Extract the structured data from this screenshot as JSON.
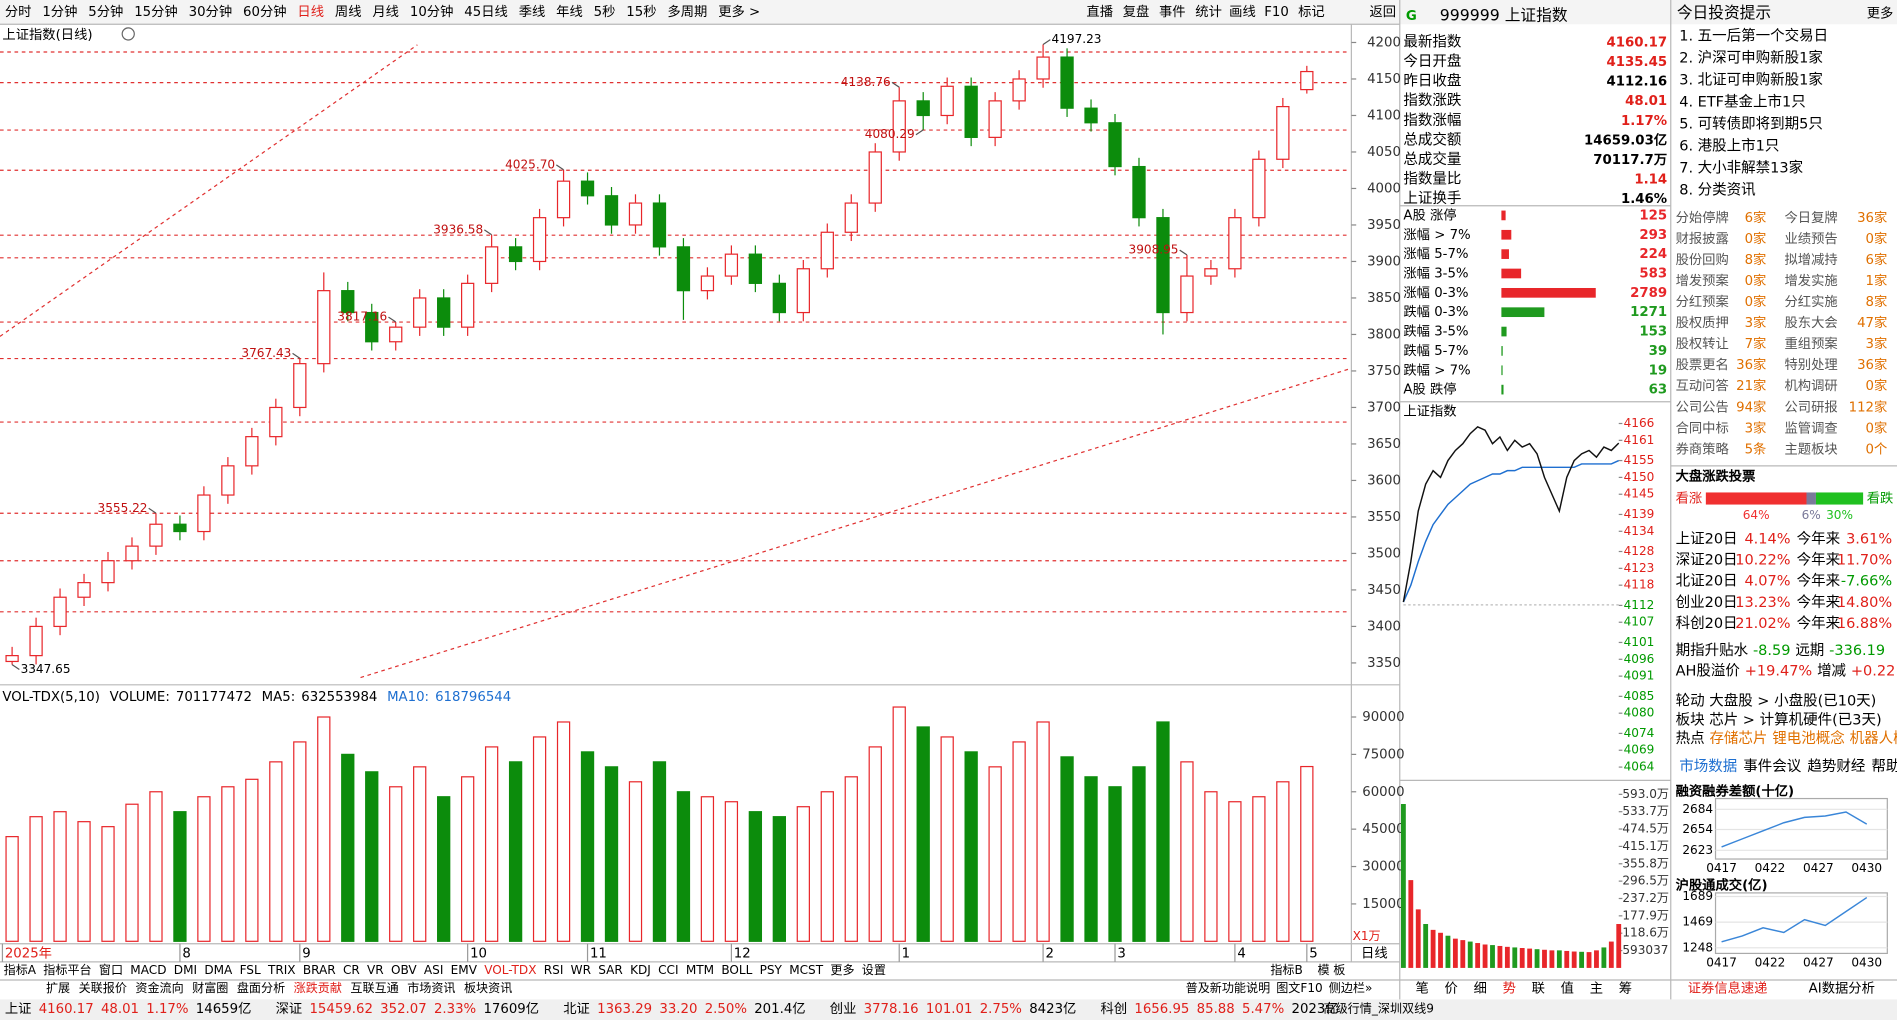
{
  "toolbar": {
    "periods": [
      "分时",
      "1分钟",
      "5分钟",
      "15分钟",
      "30分钟",
      "60分钟",
      "日线",
      "周线",
      "月线",
      "10分钟",
      "45日线",
      "季线",
      "年线",
      "5秒",
      "15秒",
      "多周期",
      "更多 >"
    ],
    "active": 6,
    "buttons": [
      "直播",
      "复盘",
      "事件",
      "统计",
      "画线",
      "F10",
      "标记",
      "返回"
    ]
  },
  "main_chart": {
    "type": "candlestick",
    "title": "上证指数(日线)",
    "open": [
      3352,
      3360,
      3400,
      3440,
      3460,
      3490,
      3510,
      3540,
      3530,
      3580,
      3620,
      3660,
      3700,
      3760,
      3860,
      3830,
      3790,
      3810,
      3850,
      3810,
      3870,
      3920,
      3900,
      3960,
      4010,
      3990,
      3950,
      3980,
      3920,
      3860,
      3880,
      3910,
      3870,
      3830,
      3890,
      3940,
      3980,
      4050,
      4120,
      4100,
      4140,
      4070,
      4120,
      4150,
      4180,
      4110,
      4090,
      4030,
      3960,
      3830,
      3880,
      3890,
      3960,
      4040,
      4135.45
    ],
    "high": [
      3372,
      3412,
      3452,
      3472,
      3502,
      3522,
      3555.22,
      3552,
      3592,
      3632,
      3672,
      3712,
      3767.43,
      3885,
      3872,
      3842,
      3817.16,
      3862,
      3862,
      3882,
      3936.58,
      3932,
      3972,
      4025.7,
      4022,
      4002,
      3992,
      3992,
      3932,
      3892,
      3922,
      3922,
      3882,
      3902,
      3952,
      3992,
      4062,
      4138.76,
      4132,
      4152,
      4152,
      4132,
      4162,
      4197.23,
      4192,
      4122,
      4102,
      4042,
      3972,
      3908.95,
      3902,
      3972,
      4052,
      4124,
      4168
    ],
    "low": [
      3347.65,
      3348,
      3388,
      3428,
      3448,
      3478,
      3498,
      3518,
      3518,
      3568,
      3608,
      3648,
      3688,
      3748,
      3818,
      3778,
      3778,
      3798,
      3798,
      3798,
      3858,
      3888,
      3888,
      3948,
      3978,
      3938,
      3938,
      3908,
      3820,
      3848,
      3868,
      3858,
      3818,
      3818,
      3878,
      3928,
      3968,
      4038,
      4080.29,
      4088,
      4058,
      4058,
      4108,
      4138,
      4098,
      4078,
      4018,
      3948,
      3800,
      3818,
      3868,
      3878,
      3948,
      4028,
      4130
    ],
    "close": [
      3360,
      3400,
      3440,
      3460,
      3490,
      3510,
      3540,
      3530,
      3580,
      3620,
      3660,
      3700,
      3760,
      3860,
      3830,
      3790,
      3810,
      3850,
      3810,
      3870,
      3920,
      3900,
      3960,
      4010,
      3990,
      3950,
      3980,
      3920,
      3860,
      3880,
      3910,
      3870,
      3830,
      3890,
      3940,
      3980,
      4050,
      4120,
      4100,
      4140,
      4070,
      4120,
      4150,
      4180,
      4110,
      4090,
      4030,
      3960,
      3830,
      3880,
      3890,
      3960,
      4040,
      4112.16,
      4160.17
    ],
    "up_color": "#e8262a",
    "down_color": "#0c8c0c",
    "ylim": [
      3320,
      4220
    ],
    "yticks": [
      3350,
      3400,
      3450,
      3500,
      3550,
      3600,
      3650,
      3700,
      3750,
      3800,
      3850,
      3900,
      3950,
      4000,
      4050,
      4100,
      4150,
      4200
    ],
    "levels": [
      4187,
      4145,
      4080,
      4025,
      3936,
      3905,
      3817,
      3767,
      3680,
      3555,
      3490,
      3420
    ],
    "annotations": [
      {
        "value": 4197.23,
        "label": "4197.23"
      },
      {
        "value": 4138.76,
        "label": "4138.76"
      },
      {
        "value": 4080.29,
        "label": "4080.29"
      },
      {
        "value": 4025.7,
        "label": "4025.70"
      },
      {
        "value": 3936.58,
        "label": "3936.58"
      },
      {
        "value": 3817.16,
        "label": "3817.16"
      },
      {
        "value": 3767.43,
        "label": "3767.43"
      },
      {
        "value": 3555.22,
        "label": "3555.22"
      },
      {
        "value": 3347.65,
        "label": "3347.65"
      },
      {
        "value": 3908.95,
        "label": "3908.95"
      }
    ],
    "month_labels": [
      "2025年",
      "8",
      "9",
      "10",
      "11",
      "12",
      "1",
      "2",
      "3",
      "4",
      "5"
    ],
    "period_label": "日线"
  },
  "volume_chart": {
    "type": "bar",
    "name": "VOL-TDX(5,10)",
    "items": [
      {
        "label": "VOLUME:",
        "value": 701177472,
        "color": "#000000"
      },
      {
        "label": "MA5:",
        "value": 632553984,
        "color": "#000000"
      },
      {
        "label": "MA10:",
        "value": 618796544,
        "color": "#1e6fd0"
      }
    ],
    "values": [
      42000,
      50000,
      52000,
      48000,
      46000,
      55000,
      60000,
      52000,
      58000,
      62000,
      65000,
      72000,
      80000,
      90000,
      75000,
      68000,
      62000,
      70000,
      58000,
      66000,
      78000,
      72000,
      82000,
      88000,
      76000,
      70000,
      64000,
      72000,
      60000,
      58000,
      56000,
      52000,
      50000,
      54000,
      60000,
      66000,
      78000,
      94000,
      86000,
      82000,
      76000,
      70000,
      80000,
      88000,
      74000,
      66000,
      62000,
      70000,
      88000,
      72000,
      60000,
      56000,
      58000,
      64000,
      70117.7
    ],
    "ylim": [
      0,
      100000
    ],
    "yticks": [
      15000,
      30000,
      45000,
      60000,
      75000,
      90000
    ],
    "unit": "X1万"
  },
  "indicator_tabs": [
    "指标A",
    "指标平台",
    "窗口",
    "MACD",
    "DMI",
    "DMA",
    "FSL",
    "TRIX",
    "BRAR",
    "CR",
    "VR",
    "OBV",
    "ASI",
    "EMV",
    "VOL-TDX",
    "RSI",
    "WR",
    "SAR",
    "KDJ",
    "CCI",
    "MTM",
    "BOLL",
    "PSY",
    "MCST",
    "更多",
    "设置"
  ],
  "indicator_active": 14,
  "info_tabs": [
    "扩展",
    "关联报价",
    "资金流向",
    "财富圈",
    "盘面分析",
    "涨跌贡献",
    "互联互通",
    "市场资讯",
    "板块资讯"
  ],
  "left_bottom": [
    "指标B",
    "模",
    "板"
  ],
  "quote": {
    "flag": "G",
    "title": "999999 上证指数",
    "rows": [
      {
        "label": "最新指数",
        "value": "4160.17",
        "color": "#e0201a"
      },
      {
        "label": "今日开盘",
        "value": "4135.45",
        "color": "#e0201a"
      },
      {
        "label": "昨日收盘",
        "value": "4112.16",
        "color": "#000000"
      },
      {
        "label": "指数涨跌",
        "value": "48.01",
        "color": "#e0201a"
      },
      {
        "label": "指数涨幅",
        "value": "1.17%",
        "color": "#e0201a"
      },
      {
        "label": "总成交额",
        "value": "14659.03亿",
        "color": "#000000"
      },
      {
        "label": "总成交量",
        "value": "70117.7万",
        "color": "#000000"
      },
      {
        "label": "指数量比",
        "value": "1.14",
        "color": "#e0201a"
      },
      {
        "label": "上证换手",
        "value": "1.46%",
        "color": "#000000"
      }
    ]
  },
  "breadth": {
    "type": "bar",
    "labels": [
      "A股 涨停",
      "涨幅 > 7%",
      "涨幅 5-7%",
      "涨幅 3-5%",
      "涨幅 0-3%",
      "跌幅 0-3%",
      "跌幅 3-5%",
      "跌幅 5-7%",
      "跌幅 > 7%",
      "A股 跌停"
    ],
    "values": [
      125,
      293,
      224,
      583,
      2789,
      1271,
      153,
      39,
      19,
      63
    ],
    "colors": [
      "#e8262a",
      "#e8262a",
      "#e8262a",
      "#e8262a",
      "#e8262a",
      "#1f9a1f",
      "#1f9a1f",
      "#1f9a1f",
      "#1f9a1f",
      "#1f9a1f"
    ]
  },
  "intraday": {
    "type": "line",
    "title": "上证指数",
    "prev_close": 4112.16,
    "price": [
      4113,
      4125,
      4140,
      4148,
      4152,
      4150,
      4155,
      4158,
      4160,
      4163,
      4165,
      4164,
      4160,
      4162,
      4158,
      4161,
      4159,
      4160,
      4157,
      4150,
      4145,
      4140,
      4150,
      4155,
      4157,
      4158,
      4156,
      4159,
      4158,
      4160.17
    ],
    "avg": [
      4113,
      4118,
      4125,
      4131,
      4136,
      4139,
      4142,
      4144,
      4146,
      4148,
      4149,
      4150,
      4151,
      4151,
      4152,
      4152,
      4153,
      4153,
      4153,
      4153,
      4153,
      4153,
      4153,
      4153,
      4154,
      4154,
      4154,
      4154,
      4154,
      4155
    ],
    "ylim": [
      4064,
      4166
    ],
    "yticks": [
      4166,
      4161,
      4155,
      4150,
      4145,
      4139,
      4134,
      4128,
      4123,
      4118,
      4112,
      4107,
      4101,
      4096,
      4091,
      4085,
      4080,
      4074,
      4069,
      4064
    ],
    "volume": [
      560,
      300,
      200,
      150,
      130,
      120,
      110,
      100,
      95,
      90,
      85,
      80,
      78,
      75,
      72,
      70,
      68,
      66,
      64,
      62,
      60,
      60,
      58,
      56,
      55,
      54,
      60,
      70,
      90,
      150
    ],
    "vol_ylim": [
      0,
      620
    ],
    "vol_ticks": [
      {
        "value": 593,
        "label": "593.0万"
      },
      {
        "value": 533.7,
        "label": "533.7万"
      },
      {
        "value": 474.5,
        "label": "474.5万"
      },
      {
        "value": 415.1,
        "label": "415.1万"
      },
      {
        "value": 355.8,
        "label": "355.8万"
      },
      {
        "value": 296.5,
        "label": "296.5万"
      },
      {
        "value": 237.2,
        "label": "237.2万"
      },
      {
        "value": 177.9,
        "label": "177.9万"
      },
      {
        "value": 118.6,
        "label": "118.6万"
      },
      {
        "value": 59.3037,
        "label": "593037"
      }
    ],
    "tabs": [
      "笔",
      "价",
      "细",
      "势",
      "联",
      "值",
      "主",
      "筹"
    ],
    "active_tab": 3
  },
  "tips": {
    "title": "今日投资提示",
    "more": "更多",
    "items": [
      "1. 五一后第一个交易日",
      "2. 沪深可申购新股1家",
      "3. 北证可申购新股1家",
      "4. ETF基金上市1只",
      "5. 可转债即将到期5只",
      "6. 港股上市1只",
      "7. 大小非解禁13家",
      "8. 分类资讯"
    ]
  },
  "stats": [
    [
      "分始停牌",
      "6家",
      "今日复牌",
      "36家"
    ],
    [
      "财报披露",
      "0家",
      "业绩预告",
      "0家"
    ],
    [
      "股份回购",
      "8家",
      "拟增减持",
      "6家"
    ],
    [
      "增发预案",
      "0家",
      "增发实施",
      "1家"
    ],
    [
      "分红预案",
      "0家",
      "分红实施",
      "8家"
    ],
    [
      "股权质押",
      "3家",
      "股东大会",
      "47家"
    ],
    [
      "股权转让",
      "7家",
      "重组预案",
      "3家"
    ],
    [
      "股票更名",
      "36家",
      "特别处理",
      "36家"
    ],
    [
      "互动问答",
      "21家",
      "机构调研",
      "0家"
    ],
    [
      "公司公告",
      "94家",
      "公司研报",
      "112家"
    ],
    [
      "合同中标",
      "3家",
      "监管调查",
      "0家"
    ],
    [
      "券商策略",
      "5条",
      "主题板块",
      "0个"
    ]
  ],
  "vote": {
    "type": "bar",
    "title": "大盘涨跌投票",
    "up": "看涨",
    "down": "看跌",
    "values": [
      64,
      6,
      30
    ],
    "value_labels": [
      "64%",
      "6%",
      "30%"
    ],
    "colors": [
      "#f03030",
      "#7a7a9a",
      "#20c020"
    ]
  },
  "returns": [
    [
      "上证20日",
      "4.14%",
      "今年来",
      "3.61%"
    ],
    [
      "深证20日",
      "10.22%",
      "今年来",
      "11.70%"
    ],
    [
      "北证20日",
      "4.07%",
      "今年来",
      "-7.66%"
    ],
    [
      "创业20日",
      "13.23%",
      "今年来",
      "14.80%"
    ],
    [
      "科创20日",
      "21.02%",
      "今年来",
      "16.88%"
    ]
  ],
  "spreads": [
    [
      "期指升贴水",
      "-8.59",
      "远期",
      "-336.19"
    ],
    [
      "AH股溢价",
      "+19.47%",
      "增减",
      "+0.22"
    ]
  ],
  "rotation": [
    "轮动 大盘股 > 小盘股(已10天)",
    "板块 芯片 > 计算机硬件(已3天)"
  ],
  "hot": {
    "label": "热点",
    "items": [
      "存储芯片",
      "锂电池概念",
      "机器人概"
    ]
  },
  "market_tabs": [
    "市场数据",
    "事件会议",
    "趋势财经",
    "帮助"
  ],
  "mini_charts": [
    {
      "type": "line",
      "title": "融资融券差额(十亿)",
      "categories": [
        "0417",
        "0422",
        "0427",
        "0430"
      ],
      "values": [
        2628,
        2640,
        2652,
        2664,
        2672,
        2674,
        2680,
        2662
      ],
      "ylim": [
        2610,
        2700
      ],
      "yticks": [
        2684,
        2654,
        2623
      ]
    },
    {
      "type": "line",
      "title": "沪股通成交(亿)",
      "categories": [
        "0417",
        "0422",
        "0427",
        "0430"
      ],
      "values": [
        1300,
        1350,
        1420,
        1380,
        1490,
        1440,
        1560,
        1680
      ],
      "ylim": [
        1200,
        1720
      ],
      "yticks": [
        1689,
        1469,
        1248
      ]
    }
  ],
  "footer_right": [
    "证券信息速递",
    "AI数据分析"
  ],
  "status": {
    "indices": [
      [
        "上证",
        "4160.17",
        "48.01",
        "1.17%",
        "14659亿"
      ],
      [
        "深证",
        "15459.62",
        "352.07",
        "2.33%",
        "17609亿"
      ],
      [
        "北证",
        "1363.29",
        "33.20",
        "2.50%",
        "201.4亿"
      ],
      [
        "创业",
        "3778.16",
        "101.01",
        "2.75%",
        "8423亿"
      ],
      [
        "科创",
        "1656.95",
        "85.88",
        "5.47%",
        "2023亿"
      ]
    ],
    "links": [
      "普及新功能说明",
      "图文F10",
      "侧边栏»"
    ],
    "server": "高级行情_深圳双线9"
  }
}
